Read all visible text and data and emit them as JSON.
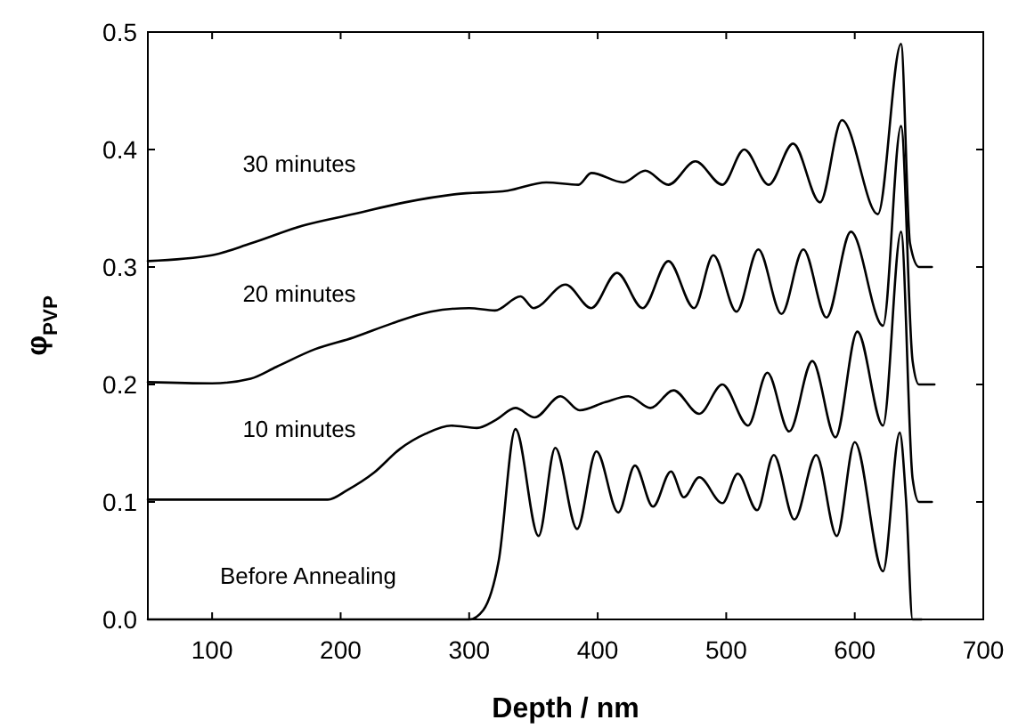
{
  "chart_data": {
    "type": "line",
    "xlabel": "Depth / nm",
    "ylabel": "φ$_{PVP}$",
    "xlim": [
      50,
      700
    ],
    "xticks": [
      100,
      200,
      300,
      400,
      500,
      600,
      700
    ],
    "ylim": [
      0,
      0.5
    ],
    "yticks": [
      {
        "value": 0,
        "label": "0.0"
      },
      {
        "value": 0.1,
        "label": "0.1"
      },
      {
        "value": 0.2,
        "label": "0.2"
      },
      {
        "value": 0.3,
        "label": "0.3"
      },
      {
        "value": 0.4,
        "label": "0.4"
      },
      {
        "value": 0.5,
        "label": "0.5"
      }
    ],
    "grid": false,
    "marker": "none",
    "line_style": "solid",
    "series": [
      {
        "name": "Before Annealing",
        "color": "#000000",
        "x": [
          50,
          300,
          311,
          323,
          336,
          354,
          367,
          384,
          399,
          416,
          429,
          443,
          457,
          467,
          479,
          497,
          509,
          524,
          537,
          553,
          570,
          586,
          600,
          622,
          635,
          640,
          645,
          652
        ],
        "values": [
          0,
          0,
          0.008,
          0.05,
          0.162,
          0.071,
          0.146,
          0.077,
          0.143,
          0.091,
          0.131,
          0.096,
          0.126,
          0.104,
          0.121,
          0.099,
          0.124,
          0.093,
          0.14,
          0.085,
          0.14,
          0.071,
          0.151,
          0.041,
          0.159,
          0.1,
          0,
          0
        ]
      },
      {
        "name": "10 minutes",
        "color": "#000000",
        "x": [
          50,
          100,
          150,
          190,
          205,
          226,
          246,
          266,
          286,
          306,
          321,
          336,
          351,
          371,
          386,
          406,
          424,
          441,
          459,
          479,
          497,
          517,
          532,
          549,
          567,
          585,
          602,
          622,
          636,
          645,
          650,
          660
        ],
        "values": [
          0.102,
          0.102,
          0.102,
          0.102,
          0.11,
          0.125,
          0.145,
          0.158,
          0.165,
          0.163,
          0.17,
          0.18,
          0.172,
          0.19,
          0.178,
          0.185,
          0.19,
          0.18,
          0.195,
          0.175,
          0.2,
          0.165,
          0.21,
          0.16,
          0.22,
          0.155,
          0.245,
          0.165,
          0.33,
          0.12,
          0.1,
          0.1
        ]
      },
      {
        "name": "20 minutes",
        "color": "#000000",
        "x": [
          50,
          100,
          130,
          150,
          180,
          210,
          240,
          270,
          300,
          320,
          340,
          350,
          375,
          395,
          415,
          435,
          455,
          475,
          490,
          508,
          525,
          543,
          560,
          578,
          597,
          622,
          636,
          645,
          650,
          662
        ],
        "values": [
          0.202,
          0.201,
          0.205,
          0.215,
          0.23,
          0.24,
          0.252,
          0.262,
          0.265,
          0.263,
          0.275,
          0.265,
          0.285,
          0.265,
          0.295,
          0.265,
          0.305,
          0.265,
          0.31,
          0.262,
          0.315,
          0.26,
          0.315,
          0.257,
          0.33,
          0.25,
          0.42,
          0.22,
          0.2,
          0.2
        ]
      },
      {
        "name": "30 minutes",
        "color": "#000000",
        "x": [
          50,
          100,
          130,
          170,
          210,
          250,
          290,
          330,
          360,
          385,
          395,
          420,
          437,
          455,
          476,
          497,
          514,
          533,
          552,
          573,
          590,
          618,
          636,
          643,
          650,
          660
        ],
        "values": [
          0.305,
          0.31,
          0.32,
          0.335,
          0.345,
          0.355,
          0.362,
          0.365,
          0.372,
          0.37,
          0.38,
          0.372,
          0.382,
          0.37,
          0.39,
          0.37,
          0.4,
          0.37,
          0.405,
          0.355,
          0.425,
          0.345,
          0.49,
          0.32,
          0.3,
          0.3
        ]
      }
    ]
  }
}
